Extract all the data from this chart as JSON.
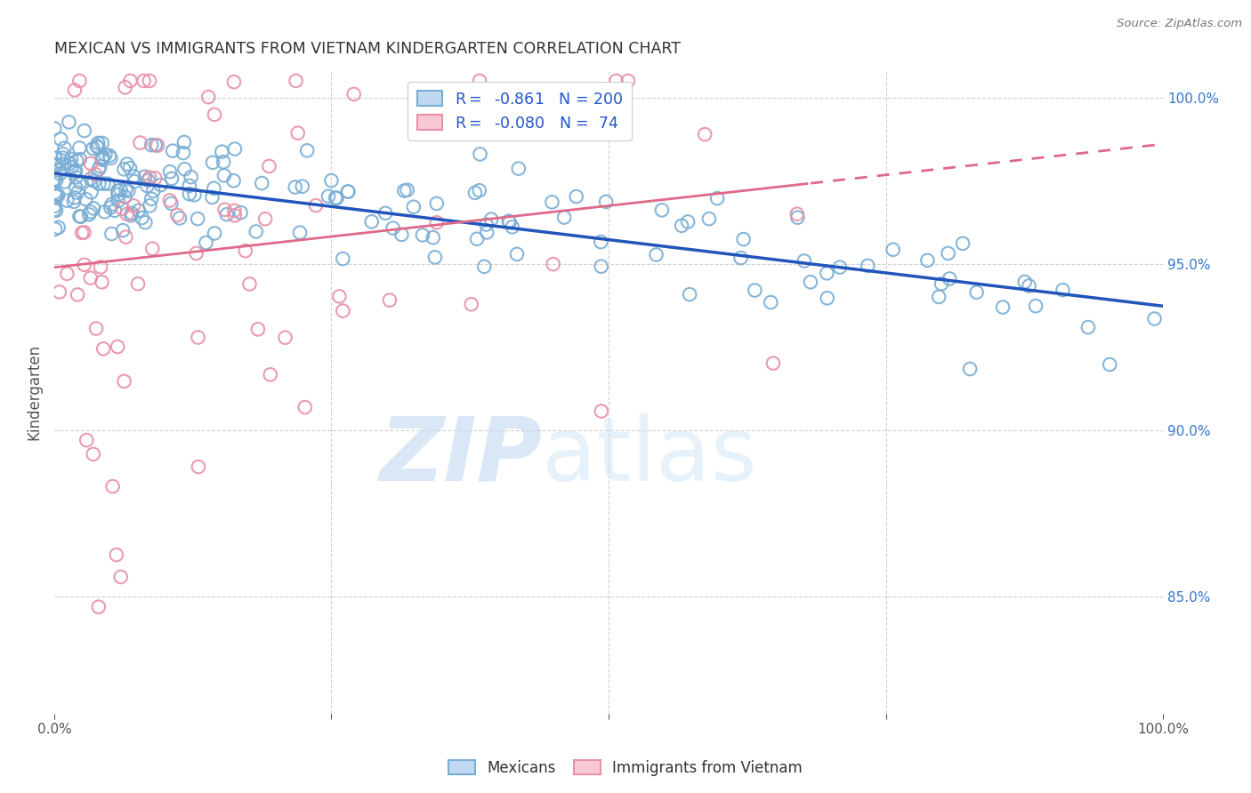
{
  "title": "MEXICAN VS IMMIGRANTS FROM VIETNAM KINDERGARTEN CORRELATION CHART",
  "source": "Source: ZipAtlas.com",
  "ylabel": "Kindergarten",
  "watermark_zip": "ZIP",
  "watermark_atlas": "atlas",
  "blue_R": "-0.861",
  "blue_N": "200",
  "pink_R": "-0.080",
  "pink_N": "74",
  "blue_color": "#a8c8e8",
  "blue_edge_color": "#7aaed4",
  "pink_color": "#f4b0c0",
  "pink_edge_color": "#e890a8",
  "blue_line_color": "#2255bb",
  "pink_line_color": "#e06888",
  "legend_text_color": "#2255cc",
  "background_color": "#ffffff",
  "grid_color": "#cccccc",
  "title_color": "#333333",
  "xlim": [
    0.0,
    1.0
  ],
  "ylim": [
    0.815,
    1.008
  ]
}
